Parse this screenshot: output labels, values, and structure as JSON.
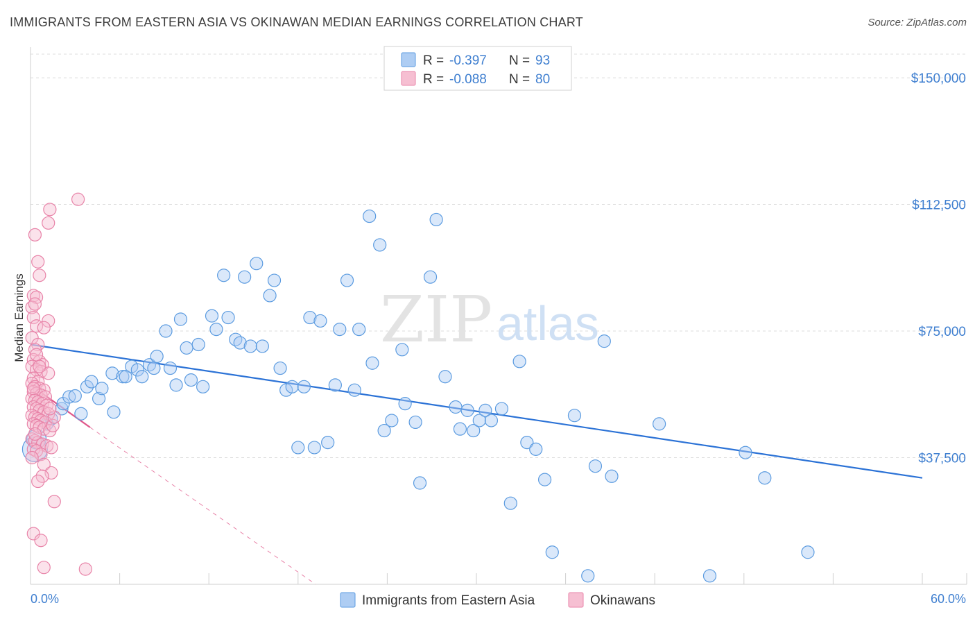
{
  "header": {
    "title": "IMMIGRANTS FROM EASTERN ASIA VS OKINAWAN MEDIAN EARNINGS CORRELATION CHART",
    "source": "Source: ZipAtlas.com"
  },
  "watermark": {
    "zip": "ZIP",
    "atlas": "atlas"
  },
  "colors": {
    "blue": "#5b9be0",
    "blue_fill": "#aecdf3",
    "blue_line": "#2b72d6",
    "pink": "#e883a8",
    "pink_fill": "#f6bfd2",
    "pink_line": "#e0578a",
    "tick_text": "#3f7fd0",
    "grid": "#dcdcdc"
  },
  "legend": {
    "rows": [
      {
        "r_label": "R = ",
        "r_value": "-0.397",
        "n_label": "N = ",
        "n_value": "93"
      },
      {
        "r_label": "R = ",
        "r_value": "-0.088",
        "n_label": "N = ",
        "n_value": "80"
      }
    ]
  },
  "chart_data": {
    "type": "scatter",
    "title": "IMMIGRANTS FROM EASTERN ASIA VS OKINAWAN MEDIAN EARNINGS CORRELATION CHART",
    "xlabel": "",
    "ylabel": "Median Earnings",
    "xlim": [
      0,
      60
    ],
    "ylim": [
      0,
      157000
    ],
    "x_tick_labels": [
      "0.0%",
      "60.0%"
    ],
    "y_ticks": [
      37500,
      75000,
      112500,
      150000
    ],
    "y_tick_labels": [
      "$37,500",
      "$75,000",
      "$112,500",
      "$150,000"
    ],
    "series": [
      {
        "name": "Immigrants from Eastern Asia",
        "color": "blue",
        "trend": {
          "x0": 0,
          "y0": 71000,
          "x1": 60,
          "y1": 31500
        },
        "points": [
          [
            0.3,
            40000,
            18
          ],
          [
            0.4,
            43000,
            14
          ],
          [
            1.4,
            49000,
            9
          ],
          [
            1.1,
            47500,
            9
          ],
          [
            2.1,
            52000,
            9
          ],
          [
            2.2,
            53500,
            9
          ],
          [
            2.6,
            55500,
            9
          ],
          [
            3.0,
            55800,
            9
          ],
          [
            3.4,
            50500,
            9
          ],
          [
            3.8,
            58500,
            9
          ],
          [
            4.1,
            60000,
            9
          ],
          [
            4.6,
            55000,
            9
          ],
          [
            4.8,
            58000,
            9
          ],
          [
            5.5,
            62500,
            9
          ],
          [
            5.6,
            51000,
            9
          ],
          [
            6.2,
            61500,
            9
          ],
          [
            6.4,
            61500,
            9
          ],
          [
            6.8,
            64500,
            9
          ],
          [
            7.2,
            63500,
            9
          ],
          [
            7.5,
            61500,
            9
          ],
          [
            8.0,
            65000,
            9
          ],
          [
            8.3,
            64000,
            9
          ],
          [
            8.5,
            67500,
            9
          ],
          [
            9.1,
            75000,
            9
          ],
          [
            9.4,
            64000,
            9
          ],
          [
            9.8,
            59000,
            9
          ],
          [
            10.1,
            78500,
            9
          ],
          [
            10.5,
            70000,
            9
          ],
          [
            10.8,
            60500,
            9
          ],
          [
            11.3,
            71000,
            9
          ],
          [
            11.6,
            58500,
            9
          ],
          [
            12.2,
            79500,
            9
          ],
          [
            12.5,
            75500,
            9
          ],
          [
            13.0,
            91500,
            9
          ],
          [
            13.3,
            79000,
            9
          ],
          [
            13.8,
            72500,
            9
          ],
          [
            14.1,
            71500,
            9
          ],
          [
            14.4,
            91000,
            9
          ],
          [
            14.8,
            70500,
            9
          ],
          [
            15.2,
            95000,
            9
          ],
          [
            15.6,
            70500,
            9
          ],
          [
            16.1,
            85500,
            9
          ],
          [
            16.4,
            90000,
            9
          ],
          [
            16.8,
            64000,
            9
          ],
          [
            17.2,
            57500,
            9
          ],
          [
            17.6,
            58500,
            9
          ],
          [
            18.0,
            40500,
            9
          ],
          [
            18.4,
            58500,
            9
          ],
          [
            18.8,
            79000,
            9
          ],
          [
            19.1,
            40500,
            9
          ],
          [
            19.5,
            78000,
            9
          ],
          [
            20.0,
            42000,
            9
          ],
          [
            20.5,
            59000,
            9
          ],
          [
            20.8,
            75500,
            9
          ],
          [
            21.3,
            90000,
            9
          ],
          [
            21.8,
            57500,
            9
          ],
          [
            22.1,
            75500,
            9
          ],
          [
            22.8,
            109000,
            9
          ],
          [
            23.0,
            65500,
            9
          ],
          [
            23.5,
            100500,
            9
          ],
          [
            23.8,
            45500,
            9
          ],
          [
            24.3,
            48500,
            9
          ],
          [
            25.0,
            69500,
            9
          ],
          [
            25.2,
            53500,
            9
          ],
          [
            25.9,
            48000,
            9
          ],
          [
            26.2,
            30000,
            9
          ],
          [
            26.9,
            91000,
            9
          ],
          [
            27.3,
            108000,
            9
          ],
          [
            27.9,
            61500,
            9
          ],
          [
            28.6,
            52500,
            9
          ],
          [
            28.9,
            46000,
            9
          ],
          [
            29.4,
            51500,
            9
          ],
          [
            29.8,
            45500,
            9
          ],
          [
            30.2,
            48500,
            9
          ],
          [
            30.6,
            51500,
            9
          ],
          [
            31.0,
            48500,
            9
          ],
          [
            31.7,
            52000,
            9
          ],
          [
            32.3,
            24000,
            9
          ],
          [
            32.9,
            66000,
            9
          ],
          [
            33.4,
            42000,
            9
          ],
          [
            34.0,
            40000,
            9
          ],
          [
            34.6,
            31000,
            9
          ],
          [
            35.1,
            9500,
            9
          ],
          [
            36.6,
            50000,
            9
          ],
          [
            37.5,
            2500,
            9
          ],
          [
            38.0,
            35000,
            9
          ],
          [
            38.6,
            72000,
            9
          ],
          [
            39.1,
            32000,
            9
          ],
          [
            42.3,
            47500,
            9
          ],
          [
            45.7,
            2500,
            9
          ],
          [
            48.1,
            39000,
            9
          ],
          [
            49.4,
            31500,
            9
          ],
          [
            52.3,
            9500,
            9
          ]
        ]
      },
      {
        "name": "Okinawans",
        "color": "pink",
        "trend": {
          "x0": 0,
          "y0": 59000,
          "x1": 4,
          "y1": 46500
        },
        "trend_ext": {
          "x0": 4,
          "y0": 46500,
          "x1": 60,
          "y1": -125000
        },
        "points": [
          [
            3.2,
            114000,
            9
          ],
          [
            1.3,
            111000,
            9
          ],
          [
            1.2,
            107000,
            9
          ],
          [
            0.3,
            103500,
            9
          ],
          [
            0.5,
            95500,
            9
          ],
          [
            0.6,
            91500,
            9
          ],
          [
            0.2,
            85500,
            9
          ],
          [
            0.4,
            85000,
            9
          ],
          [
            0.1,
            82000,
            9
          ],
          [
            0.3,
            83000,
            9
          ],
          [
            0.2,
            79000,
            9
          ],
          [
            1.2,
            78000,
            9
          ],
          [
            0.4,
            76500,
            9
          ],
          [
            0.9,
            76000,
            9
          ],
          [
            0.1,
            73000,
            9
          ],
          [
            0.5,
            71000,
            9
          ],
          [
            0.3,
            69500,
            9
          ],
          [
            0.2,
            66500,
            9
          ],
          [
            0.6,
            66000,
            9
          ],
          [
            0.8,
            65000,
            9
          ],
          [
            0.1,
            64500,
            9
          ],
          [
            0.4,
            63500,
            9
          ],
          [
            0.7,
            63000,
            9
          ],
          [
            1.2,
            62500,
            9
          ],
          [
            0.2,
            61000,
            9
          ],
          [
            0.5,
            60000,
            9
          ],
          [
            0.1,
            59500,
            9
          ],
          [
            0.3,
            58500,
            9
          ],
          [
            0.6,
            58000,
            9
          ],
          [
            0.9,
            57500,
            9
          ],
          [
            0.2,
            57000,
            9
          ],
          [
            0.4,
            56500,
            9
          ],
          [
            0.7,
            56000,
            9
          ],
          [
            1.0,
            55500,
            9
          ],
          [
            0.1,
            55000,
            9
          ],
          [
            0.3,
            54500,
            9
          ],
          [
            0.5,
            54000,
            9
          ],
          [
            0.8,
            53500,
            9
          ],
          [
            1.1,
            53000,
            9
          ],
          [
            0.2,
            52500,
            9
          ],
          [
            0.4,
            52000,
            9
          ],
          [
            0.6,
            51500,
            9
          ],
          [
            0.9,
            51000,
            9
          ],
          [
            1.2,
            50500,
            9
          ],
          [
            0.1,
            50000,
            9
          ],
          [
            0.3,
            49500,
            9
          ],
          [
            0.5,
            49000,
            9
          ],
          [
            0.7,
            48500,
            9
          ],
          [
            1.0,
            48000,
            9
          ],
          [
            0.2,
            47500,
            9
          ],
          [
            0.4,
            47000,
            9
          ],
          [
            0.6,
            46500,
            9
          ],
          [
            0.9,
            46000,
            9
          ],
          [
            1.3,
            45500,
            9
          ],
          [
            1.5,
            47000,
            9
          ],
          [
            0.1,
            43000,
            9
          ],
          [
            0.3,
            42500,
            9
          ],
          [
            0.5,
            42000,
            9
          ],
          [
            0.8,
            41500,
            9
          ],
          [
            1.1,
            41000,
            9
          ],
          [
            1.4,
            40500,
            9
          ],
          [
            0.2,
            40000,
            9
          ],
          [
            0.4,
            39500,
            9
          ],
          [
            0.7,
            38500,
            9
          ],
          [
            0.1,
            37500,
            9
          ],
          [
            0.9,
            35500,
            9
          ],
          [
            1.4,
            33000,
            9
          ],
          [
            0.8,
            32000,
            9
          ],
          [
            0.5,
            30500,
            9
          ],
          [
            1.6,
            24500,
            9
          ],
          [
            0.2,
            15000,
            9
          ],
          [
            0.7,
            13000,
            9
          ],
          [
            0.9,
            5000,
            9
          ],
          [
            3.7,
            4500,
            9
          ],
          [
            0.3,
            44500,
            9
          ],
          [
            1.6,
            49500,
            9
          ],
          [
            0.2,
            58000,
            9
          ],
          [
            1.3,
            52000,
            9
          ],
          [
            0.4,
            68000,
            9
          ],
          [
            0.6,
            64500,
            9
          ]
        ]
      }
    ],
    "legend_position": "bottom-center"
  },
  "bottom_legend": [
    {
      "label": "Immigrants from Eastern Asia",
      "color": "blue"
    },
    {
      "label": "Okinawans",
      "color": "pink"
    }
  ]
}
